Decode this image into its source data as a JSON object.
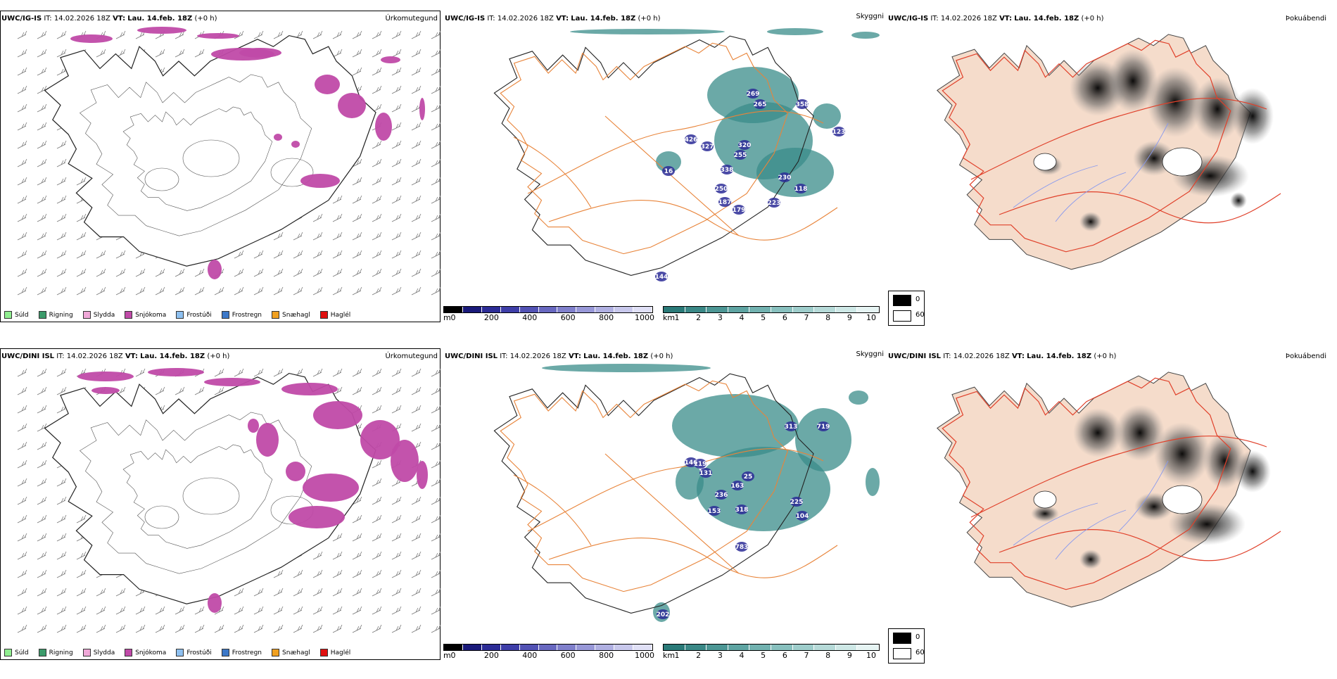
{
  "panels": [
    {
      "model": "UWC/IG-IS",
      "it_label": "IT:",
      "it_value": "14.02.2026 18Z",
      "vt_label": "VT:",
      "vt_value": "Lau. 14.feb. 18Z",
      "lead": "(+0 h)",
      "params": [
        "Úrkomutegund",
        "Skyggni",
        "Þokuábendi"
      ],
      "cloud_labels": [
        "269",
        "265",
        "358",
        "426",
        "327",
        "320",
        "255",
        "338",
        "123",
        "230",
        "118",
        "16",
        "250",
        "187",
        "179",
        "223",
        "144"
      ]
    },
    {
      "model": "UWC/DINI ISL",
      "it_label": "IT:",
      "it_value": "14.02.2026 18Z",
      "vt_label": "VT:",
      "vt_value": "Lau. 14.feb. 18Z",
      "lead": "(+0 h)",
      "params": [
        "Úrkomutegund",
        "Skyggni",
        "Þokuábendi"
      ],
      "cloud_labels": [
        "313",
        "719",
        "146",
        "119",
        "131",
        "25",
        "163",
        "236",
        "225",
        "153",
        "318",
        "104",
        "783",
        "202"
      ]
    }
  ],
  "ptype_legend": [
    {
      "label": "Súld",
      "color": "#90ee90"
    },
    {
      "label": "Rigning",
      "color": "#3c9a6a"
    },
    {
      "label": "Slydda",
      "color": "#f0a8d8"
    },
    {
      "label": "Snjókoma",
      "color": "#c04aa8"
    },
    {
      "label": "Frostúði",
      "color": "#8ec0f0"
    },
    {
      "label": "Frostregn",
      "color": "#3c78c8"
    },
    {
      "label": "Snæhagl",
      "color": "#f0a020"
    },
    {
      "label": "Haglél",
      "color": "#e01010"
    }
  ],
  "cloudbase_bar": {
    "unit": "m",
    "ticks": [
      "0",
      "200",
      "400",
      "600",
      "800",
      "1000"
    ],
    "colors": [
      "#000000",
      "#1a1a7a",
      "#2c2c96",
      "#3e3ea8",
      "#5252b4",
      "#6868c0",
      "#8080cc",
      "#9898d8",
      "#b0b0e2",
      "#c8c8ec",
      "#e0e0f6"
    ]
  },
  "visibility_bar": {
    "unit": "km",
    "ticks": [
      "1",
      "2",
      "3",
      "4",
      "5",
      "6",
      "7",
      "8",
      "9",
      "10"
    ],
    "colors": [
      "#2a7a78",
      "#3a8886",
      "#4c9694",
      "#5ea4a2",
      "#72b2b0",
      "#88c0be",
      "#9ecdcb",
      "#b6dad8",
      "#cee8e6",
      "#e6f4f3"
    ]
  },
  "fog_legend": {
    "items": [
      {
        "label": "0",
        "color": "#000000"
      },
      {
        "label": "60",
        "color": "#ffffff"
      }
    ]
  },
  "colors": {
    "snow": "#c04aa8",
    "visibility": "#3a8c8a",
    "cloudbase": "#2c2c96",
    "roads": "#e8843a",
    "fog_land": "#f5dccb",
    "fog_roads": "#e0402a",
    "fog_rivers": "#8899ee"
  }
}
